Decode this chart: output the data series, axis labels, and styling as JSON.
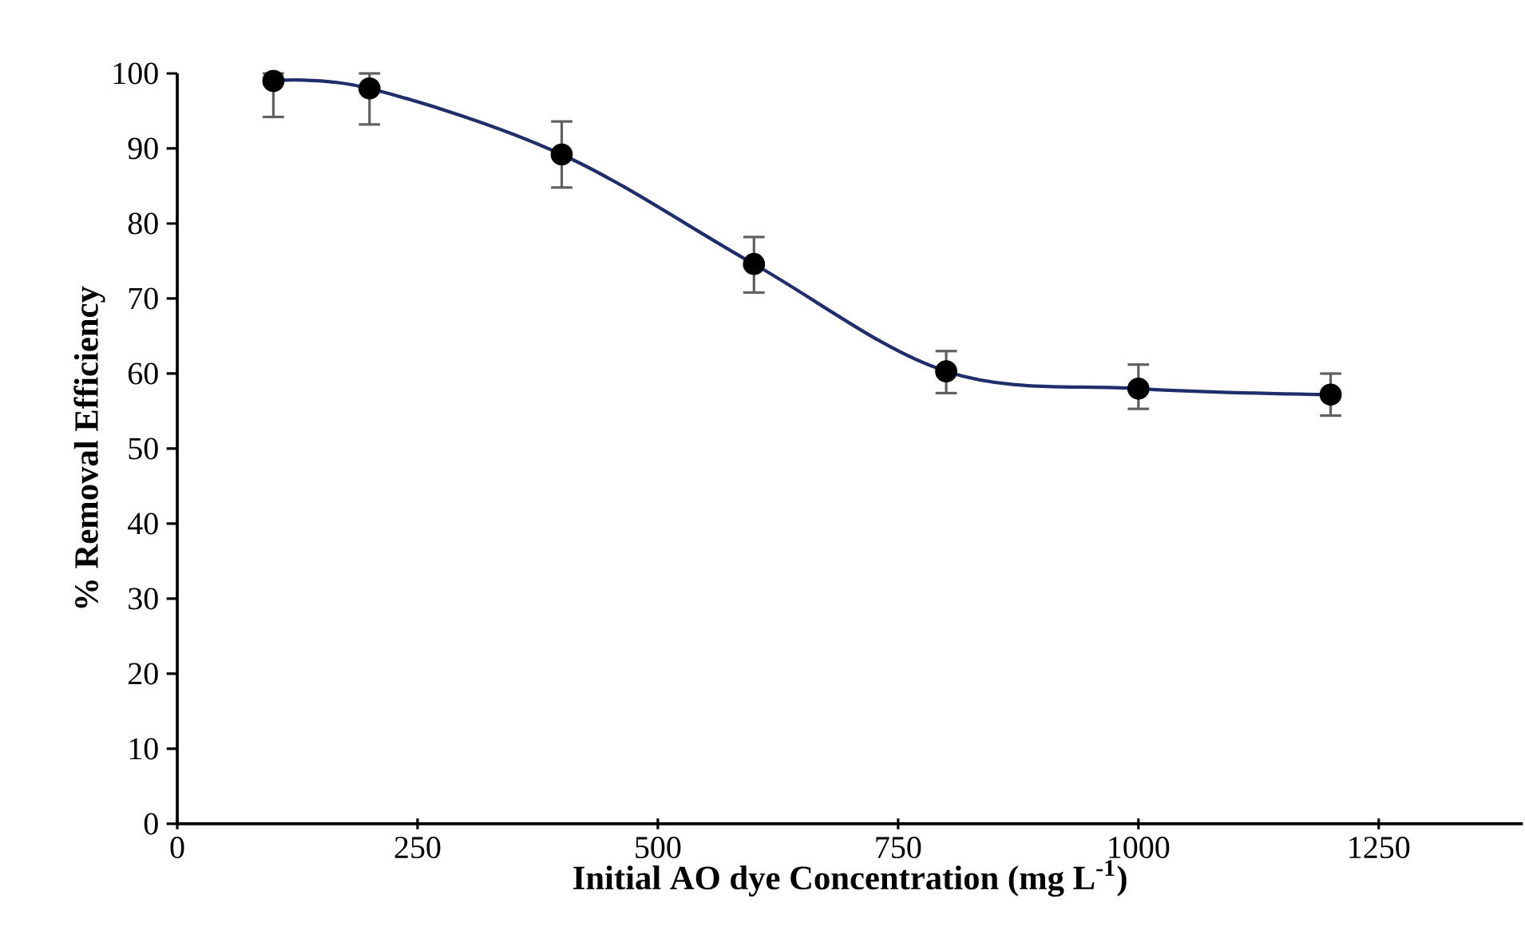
{
  "chart_data": {
    "type": "line",
    "xlabel": "Initial AO dye Concentration (mg L$^{-1}$)",
    "ylabel": "% Removal Efficiency",
    "x": [
      100,
      200,
      400,
      600,
      800,
      1000,
      1200
    ],
    "series": [
      {
        "type": "scatter",
        "color": "#000000",
        "marker": "circle",
        "values": [
          99,
          98,
          89.2,
          74.6,
          60.3,
          58,
          57.2
        ],
        "errors": [
          [
            94.2,
            100
          ],
          [
            93.2,
            100
          ],
          [
            84.8,
            93.6
          ],
          [
            70.8,
            78.2
          ],
          [
            57.4,
            63
          ],
          [
            55.3,
            61.2
          ],
          [
            54.4,
            60
          ]
        ]
      },
      {
        "color": "#1f2d6b",
        "marker": "none",
        "values": [
          99,
          98,
          89.2,
          74.6,
          60.3,
          58,
          57.2
        ]
      }
    ],
    "xlim": [
      0,
      1400
    ],
    "xticks": [
      0,
      250,
      500,
      750,
      1000,
      1250
    ],
    "ylim": [
      0,
      100
    ],
    "yticks": [
      0,
      10,
      20,
      30,
      40,
      50,
      60,
      70,
      80,
      90,
      100
    ],
    "grid": false
  }
}
